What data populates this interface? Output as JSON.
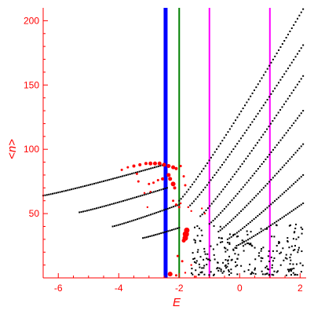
{
  "chart_data": {
    "type": "scatter",
    "title": "",
    "xlabel": "E",
    "ylabel": "<n>",
    "xlim": [
      -6.5,
      2.2
    ],
    "ylim": [
      0,
      210
    ],
    "x_ticks": [
      -6,
      -4,
      -2,
      0,
      2
    ],
    "y_ticks": [
      50,
      100,
      150,
      200
    ],
    "grid": false,
    "legend": "none",
    "colors": {
      "axis": "#ff0000",
      "black_points": "#000000",
      "red_points": "#ff0000",
      "vline_blue": "#0000ff",
      "vline_green": "#008000",
      "vline_magenta": "#ff00ff"
    },
    "vertical_lines": [
      {
        "x": -2.45,
        "color": "#0000ff"
      },
      {
        "x": -2.0,
        "color": "#008000"
      },
      {
        "x": -1.0,
        "color": "#ff00ff"
      },
      {
        "x": 1.0,
        "color": "#ff00ff"
      }
    ],
    "black_curves": [
      {
        "x_start": -6.5,
        "y_start": 64,
        "x_end": -2.5,
        "y_end": 88
      },
      {
        "x_start": -5.3,
        "y_start": 51,
        "x_end": -2.4,
        "y_end": 70
      },
      {
        "x_start": -4.2,
        "y_start": 40,
        "x_end": -2.0,
        "y_end": 57
      },
      {
        "x_start": -3.2,
        "y_start": 31,
        "x_end": -2.0,
        "y_end": 39
      },
      {
        "x_start": -2.0,
        "y_start": 60,
        "x_end": 2.1,
        "y_end": 209
      },
      {
        "x_start": -1.7,
        "y_start": 55,
        "x_end": 2.1,
        "y_end": 181
      },
      {
        "x_start": -1.3,
        "y_start": 48,
        "x_end": 2.1,
        "y_end": 157
      },
      {
        "x_start": -1.0,
        "y_start": 42,
        "x_end": 2.1,
        "y_end": 130
      },
      {
        "x_start": -0.7,
        "y_start": 36,
        "x_end": 2.1,
        "y_end": 104
      },
      {
        "x_start": -0.4,
        "y_start": 30,
        "x_end": 2.1,
        "y_end": 80
      },
      {
        "x_start": -0.1,
        "y_start": 25,
        "x_end": 2.1,
        "y_end": 58
      }
    ],
    "red_points": [
      {
        "x": -3.9,
        "y": 84,
        "r": 1.5
      },
      {
        "x": -3.7,
        "y": 86,
        "r": 1.5
      },
      {
        "x": -3.5,
        "y": 87,
        "r": 2
      },
      {
        "x": -3.3,
        "y": 88,
        "r": 2
      },
      {
        "x": -3.1,
        "y": 89,
        "r": 2
      },
      {
        "x": -2.95,
        "y": 89,
        "r": 2.5
      },
      {
        "x": -2.8,
        "y": 89,
        "r": 2.5
      },
      {
        "x": -2.65,
        "y": 89,
        "r": 2.5
      },
      {
        "x": -2.5,
        "y": 88,
        "r": 2.5
      },
      {
        "x": -2.35,
        "y": 87,
        "r": 2.5
      },
      {
        "x": -2.2,
        "y": 86,
        "r": 2.5
      },
      {
        "x": -2.1,
        "y": 85,
        "r": 2
      },
      {
        "x": -3.4,
        "y": 81,
        "r": 1.5
      },
      {
        "x": -3.35,
        "y": 75,
        "r": 1.5
      },
      {
        "x": -3.0,
        "y": 73,
        "r": 1.5
      },
      {
        "x": -2.85,
        "y": 74,
        "r": 1.5
      },
      {
        "x": -2.7,
        "y": 76,
        "r": 1.5
      },
      {
        "x": -2.55,
        "y": 77,
        "r": 2
      },
      {
        "x": -2.35,
        "y": 80,
        "r": 2.5
      },
      {
        "x": -2.3,
        "y": 77,
        "r": 2.5
      },
      {
        "x": -2.2,
        "y": 73,
        "r": 3
      },
      {
        "x": -2.15,
        "y": 70,
        "r": 2
      },
      {
        "x": -1.95,
        "y": 87,
        "r": 1.5
      },
      {
        "x": -1.85,
        "y": 79,
        "r": 1.5
      },
      {
        "x": -1.8,
        "y": 72,
        "r": 1.5
      },
      {
        "x": -3.15,
        "y": 66,
        "r": 1.2
      },
      {
        "x": -3.05,
        "y": 55,
        "r": 1.2
      },
      {
        "x": -2.95,
        "y": 67,
        "r": 1.2
      },
      {
        "x": -2.2,
        "y": 60,
        "r": 1.5
      },
      {
        "x": -2.1,
        "y": 57,
        "r": 1.5
      },
      {
        "x": -2.0,
        "y": 55,
        "r": 1.5
      },
      {
        "x": -1.95,
        "y": 58,
        "r": 1.2
      },
      {
        "x": -1.7,
        "y": 55,
        "r": 1.2
      },
      {
        "x": -1.6,
        "y": 52,
        "r": 1.2
      },
      {
        "x": -1.25,
        "y": 54,
        "r": 1.2
      },
      {
        "x": -1.15,
        "y": 50,
        "r": 1.2
      },
      {
        "x": -1.75,
        "y": 37,
        "r": 3.5
      },
      {
        "x": -1.78,
        "y": 34,
        "r": 4
      },
      {
        "x": -1.8,
        "y": 31,
        "r": 3.5
      },
      {
        "x": -1.85,
        "y": 29,
        "r": 2.5
      },
      {
        "x": -2.05,
        "y": 17,
        "r": 1.5
      },
      {
        "x": -1.9,
        "y": 13,
        "r": 1.5
      },
      {
        "x": -2.3,
        "y": 3,
        "r": 3
      },
      {
        "x": -2.1,
        "y": 2,
        "r": 1.5
      },
      {
        "x": -1.8,
        "y": 4,
        "r": 1.2
      },
      {
        "x": -1.6,
        "y": 10,
        "r": 1.2
      },
      {
        "x": -1.45,
        "y": 1,
        "r": 1.2
      }
    ],
    "black_cloud": {
      "x_range": [
        -1.6,
        2.1
      ],
      "y_range": [
        2,
        42
      ],
      "count": 240
    }
  }
}
